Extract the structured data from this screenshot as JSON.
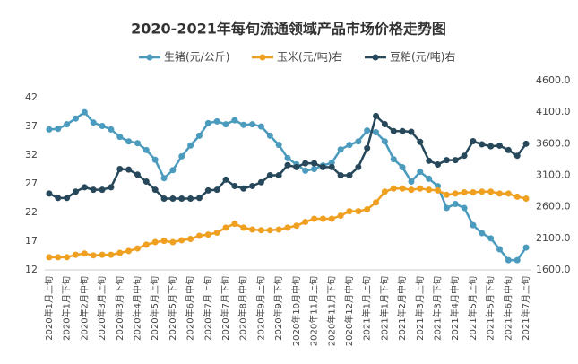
{
  "chart_data": {
    "type": "line",
    "title": "2020-2021年每旬流通领域产品市场价格走势图",
    "categories": [
      "2020年1月上旬",
      null,
      "2020年1月下旬",
      null,
      "2020年2月中旬",
      null,
      "2020年3月上旬",
      null,
      "2020年3月下旬",
      null,
      "2020年4月中旬",
      null,
      "2020年5月上旬",
      null,
      "2020年5月下旬",
      null,
      "2020年6月中旬",
      null,
      "2020年7月上旬",
      null,
      "2020年7月下旬",
      null,
      "2020年8月中旬",
      null,
      "2020年9月上旬",
      null,
      "2020年9月下旬",
      null,
      "2020年10月中旬",
      null,
      "2020年11月上旬",
      null,
      "2020年11月下旬",
      null,
      "2020年12月中旬",
      null,
      "2021年1月上旬",
      null,
      "2021年1月下旬",
      null,
      "2021年2月中旬",
      null,
      "2021年3月上旬",
      null,
      "2021年3月下旬",
      null,
      "2021年4月中旬",
      null,
      "2021年5月上旬",
      null,
      "2021年5月下旬",
      null,
      "2021年6月中旬",
      null,
      "2021年7月上旬"
    ],
    "series": [
      {
        "name": "生猪(元/公斤)",
        "color": "#4a9bbd",
        "values": [
          36.5,
          36.6,
          37.4,
          38.4,
          39.5,
          37.7,
          37.1,
          36.5,
          35.2,
          34.4,
          34.1,
          32.9,
          31.2,
          28.0,
          29.4,
          31.8,
          33.7,
          35.4,
          37.6,
          37.9,
          37.4,
          38.1,
          37.3,
          37.4,
          37.0,
          35.4,
          33.8,
          31.5,
          30.4,
          29.3,
          29.6,
          30.2,
          30.7,
          33.0,
          33.8,
          34.4,
          36.3,
          36.0,
          34.4,
          31.3,
          29.9,
          27.4,
          29.1,
          27.9,
          26.6,
          22.8,
          23.5,
          22.8,
          19.8,
          18.4,
          17.5,
          15.6,
          13.7,
          13.7,
          15.9
        ]
      },
      {
        "name": "玉米(元/吨)右",
        "color": "#f0a020",
        "axis": "y2",
        "values": [
          1800,
          1800,
          1800,
          1840,
          1860,
          1830,
          1840,
          1840,
          1870,
          1900,
          1940,
          2000,
          2040,
          2060,
          2040,
          2070,
          2090,
          2140,
          2160,
          2190,
          2270,
          2330,
          2270,
          2240,
          2230,
          2230,
          2240,
          2270,
          2300,
          2360,
          2410,
          2410,
          2410,
          2460,
          2530,
          2530,
          2560,
          2670,
          2840,
          2890,
          2890,
          2870,
          2890,
          2870,
          2860,
          2790,
          2810,
          2830,
          2830,
          2840,
          2840,
          2810,
          2810,
          2760,
          2730
        ]
      },
      {
        "name": "豆粕(元/吨)右",
        "color": "#27485a",
        "axis": "y2",
        "values": [
          2810,
          2740,
          2740,
          2840,
          2910,
          2870,
          2870,
          2910,
          3200,
          3190,
          3110,
          3000,
          2870,
          2730,
          2730,
          2730,
          2730,
          2740,
          2860,
          2870,
          3030,
          2930,
          2890,
          2930,
          2990,
          3100,
          3100,
          3260,
          3230,
          3290,
          3290,
          3230,
          3230,
          3100,
          3100,
          3230,
          3530,
          4040,
          3910,
          3800,
          3800,
          3790,
          3630,
          3330,
          3270,
          3340,
          3340,
          3410,
          3640,
          3590,
          3560,
          3570,
          3500,
          3410,
          3600
        ]
      }
    ],
    "ylim": [
      12,
      45
    ],
    "yticks": [
      12,
      17,
      22,
      27,
      32,
      37,
      42
    ],
    "y2lim": [
      1600,
      4600
    ],
    "y2ticks": [
      {
        "value": 1600,
        "label": "1600.0"
      },
      {
        "value": 2100,
        "label": "2100.0"
      },
      {
        "value": 2600,
        "label": "2600.0"
      },
      {
        "value": 3100,
        "label": "3100.0"
      },
      {
        "value": 3600,
        "label": "3600.0"
      },
      {
        "value": 4100,
        "label": "4100.0"
      },
      {
        "value": 4600,
        "label": "4600.0"
      }
    ],
    "grid": false,
    "legend": "top"
  }
}
